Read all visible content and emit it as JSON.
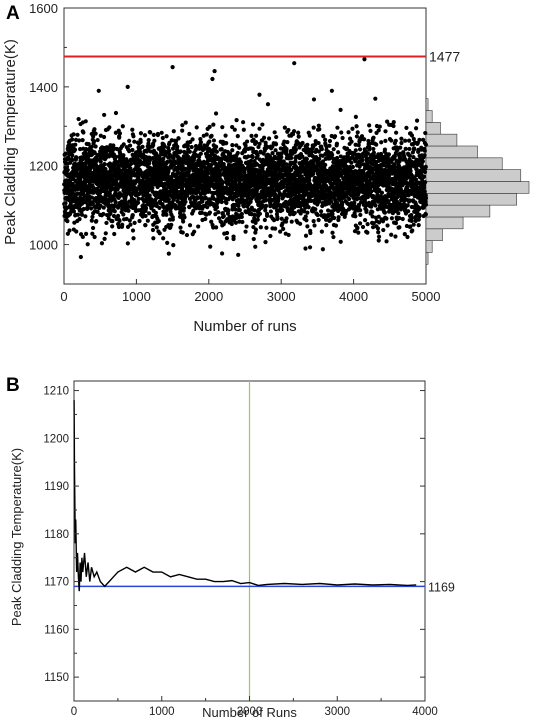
{
  "chart_data": [
    {
      "panel": "A",
      "type": "scatter",
      "xlabel": "Number of runs",
      "ylabel": "Peak Cladding Temperature(K)",
      "xlim": [
        0,
        5000
      ],
      "ylim": [
        900,
        1600
      ],
      "xticks": [
        "0",
        "1000",
        "2000",
        "3000",
        "4000",
        "5000"
      ],
      "yticks": [
        "1000",
        "1200",
        "1400",
        "1600"
      ],
      "n_points": 5000,
      "mean": 1160,
      "std": 55,
      "outliers": [
        {
          "x": 1500,
          "y": 1450
        },
        {
          "x": 2080,
          "y": 1440
        },
        {
          "x": 3180,
          "y": 1460
        },
        {
          "x": 4150,
          "y": 1470
        },
        {
          "x": 2050,
          "y": 1420
        },
        {
          "x": 480,
          "y": 1390
        },
        {
          "x": 880,
          "y": 1400
        },
        {
          "x": 2700,
          "y": 1380
        },
        {
          "x": 4300,
          "y": 1370
        },
        {
          "x": 3700,
          "y": 1390
        }
      ],
      "limit_line": {
        "y": 1477,
        "label": "1477",
        "color": "#e02020"
      },
      "histogram": {
        "orientation": "horizontal",
        "bins": [
          {
            "y0": 950,
            "y1": 980,
            "count": 2
          },
          {
            "y0": 980,
            "y1": 1010,
            "count": 6
          },
          {
            "y0": 1010,
            "y1": 1040,
            "count": 16
          },
          {
            "y0": 1040,
            "y1": 1070,
            "count": 36
          },
          {
            "y0": 1070,
            "y1": 1100,
            "count": 62
          },
          {
            "y0": 1100,
            "y1": 1130,
            "count": 88
          },
          {
            "y0": 1130,
            "y1": 1160,
            "count": 100
          },
          {
            "y0": 1160,
            "y1": 1190,
            "count": 92
          },
          {
            "y0": 1190,
            "y1": 1220,
            "count": 74
          },
          {
            "y0": 1220,
            "y1": 1250,
            "count": 50
          },
          {
            "y0": 1250,
            "y1": 1280,
            "count": 30
          },
          {
            "y0": 1280,
            "y1": 1310,
            "count": 14
          },
          {
            "y0": 1310,
            "y1": 1340,
            "count": 6
          },
          {
            "y0": 1340,
            "y1": 1370,
            "count": 2
          }
        ],
        "fill": "#cccccc"
      }
    },
    {
      "panel": "B",
      "type": "line",
      "xlabel": "Number of Runs",
      "ylabel": "Peak Cladding Temperature(K)",
      "xlim": [
        0,
        4000
      ],
      "ylim": [
        1145,
        1212
      ],
      "xticks": [
        "0",
        "1000",
        "2000",
        "3000",
        "4000"
      ],
      "yticks": [
        "1150",
        "1160",
        "1170",
        "1180",
        "1190",
        "1200",
        "1210"
      ],
      "series": [
        {
          "color": "#000000",
          "x": [
            1,
            5,
            10,
            15,
            20,
            30,
            40,
            50,
            60,
            70,
            80,
            90,
            100,
            120,
            140,
            160,
            180,
            200,
            230,
            260,
            300,
            350,
            400,
            450,
            500,
            600,
            700,
            800,
            900,
            1000,
            1100,
            1200,
            1300,
            1400,
            1500,
            1600,
            1700,
            1800,
            1900,
            2000,
            2100,
            2200,
            2400,
            2600,
            2800,
            3000,
            3200,
            3400,
            3600,
            3800,
            3900
          ],
          "y": [
            1208,
            1195,
            1186,
            1178,
            1183,
            1172,
            1176,
            1171,
            1168,
            1174,
            1170,
            1175,
            1172,
            1176,
            1171,
            1174,
            1170,
            1173,
            1171,
            1172,
            1170,
            1169,
            1170,
            1171,
            1172,
            1173,
            1172,
            1173,
            1172,
            1172,
            1171,
            1171.5,
            1171,
            1170.5,
            1170.5,
            1170,
            1170,
            1170.2,
            1169.6,
            1169.8,
            1169.2,
            1169.4,
            1169.6,
            1169.4,
            1169.6,
            1169.3,
            1169.5,
            1169.3,
            1169.4,
            1169.2,
            1169.3
          ]
        }
      ],
      "mean_line": {
        "y": 1169,
        "label": "1169",
        "color": "#2b45d6"
      },
      "vline": {
        "x": 2000,
        "color": "#8fd14f"
      }
    }
  ]
}
